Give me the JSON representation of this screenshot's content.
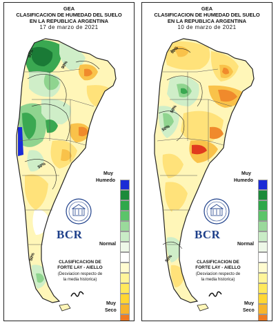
{
  "panels": [
    {
      "org": "GEA",
      "title_line1": "CLASIFICACION DE HUMEDAD DEL SUELO",
      "title_line2": "EN LA REPUBLICA ARGENTINA",
      "date": "17 de marzo de 2021",
      "contour_labels": [
        "90%",
        "90%",
        "50%",
        "50%"
      ],
      "legend_top": [
        "Muy",
        "Humedo"
      ],
      "legend_mid": "Normal",
      "legend_bottom": [
        "Muy",
        "Seco"
      ],
      "logo_text": "BCR",
      "method_line1": "CLASIFICACION DE",
      "method_line2": "FORTE LAY - AIELLO",
      "desc_line1": "(Desviacion respecto de",
      "desc_line2": "la media historica)"
    },
    {
      "org": "GEA",
      "title_line1": "CLASIFICACION DE HUMEDAD DEL SUELO",
      "title_line2": "EN LA REPUBLICA ARGENTINA",
      "date": "10 de marzo de 2021",
      "contour_labels": [
        "90%",
        "50%",
        "50%",
        "50%"
      ],
      "legend_top": [
        "Muy",
        "Humedo"
      ],
      "legend_mid": "Normal",
      "legend_bottom": [
        "Muy",
        "Seco"
      ],
      "logo_text": "BCR",
      "method_line1": "CLASIFICACION DE",
      "method_line2": "FORTE LAY - AIELLO",
      "desc_line1": "(Desviacion respecto de",
      "desc_line2": "la media historica)"
    }
  ],
  "scale_colors": [
    "#1a2bd6",
    "#1c8a3a",
    "#2fa84a",
    "#5cc46a",
    "#9ad99b",
    "#c9ecc6",
    "#eef8e8",
    "#ffffff",
    "#fffbd0",
    "#fff59a",
    "#ffe95c",
    "#ffd633",
    "#f7b52c",
    "#f07a22",
    "#e02016"
  ],
  "map_colors": {
    "land_base": "#fff6b8",
    "dry": "#ffe27a",
    "drier": "#f9c24a",
    "very_dry": "#f08a2c",
    "extreme": "#e03a1e",
    "wet_light": "#cfeec8",
    "wet": "#8fd48f",
    "wetter": "#3aa851",
    "very_wet": "#1a7a36",
    "max_wet": "#1a2bd6"
  }
}
